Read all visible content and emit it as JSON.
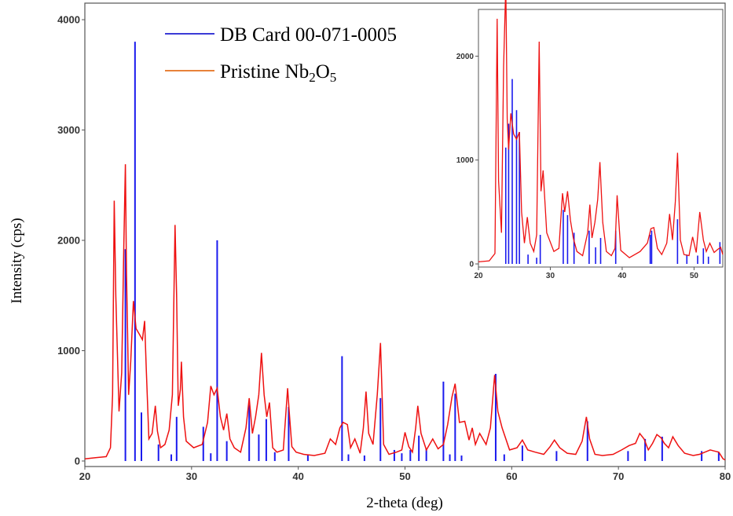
{
  "chart_data": [
    {
      "type": "line",
      "xlabel": "2-theta (deg)",
      "ylabel": "Intensity (cps)",
      "xlim": [
        20,
        80
      ],
      "ylim": [
        -50,
        4150
      ],
      "x_ticks": [
        20,
        30,
        40,
        50,
        60,
        70,
        80
      ],
      "y_ticks": [
        0,
        1000,
        2000,
        3000,
        4000
      ],
      "grid": false,
      "legend_position": "top-center",
      "legend": [
        {
          "name": "DB Card 00-071-0005",
          "color": "#3b3bd6"
        },
        {
          "name_base": "Pristine Nb",
          "sub1": "2",
          "mid": "O",
          "sub2": "5",
          "color": "#e8823a"
        }
      ],
      "series": [
        {
          "name": "DB Card 00-071-0005",
          "style": "sticks",
          "color": "#1a1aee",
          "x": [
            23.8,
            24.7,
            25.3,
            26.9,
            28.1,
            28.6,
            31.1,
            31.8,
            32.4,
            33.3,
            35.4,
            36.3,
            37.0,
            37.8,
            39.1,
            40.9,
            44.1,
            44.7,
            46.2,
            47.7,
            49.0,
            49.7,
            50.5,
            51.3,
            52.0,
            53.6,
            54.2,
            54.7,
            55.3,
            58.5,
            59.3,
            61.0,
            64.2,
            67.1,
            70.9,
            72.5,
            74.1,
            77.8,
            79.4
          ],
          "y": [
            1920,
            3800,
            440,
            150,
            60,
            400,
            310,
            70,
            2000,
            180,
            510,
            240,
            380,
            80,
            490,
            60,
            950,
            60,
            50,
            570,
            100,
            70,
            100,
            230,
            110,
            720,
            60,
            610,
            50,
            790,
            60,
            140,
            90,
            360,
            90,
            200,
            220,
            90,
            80
          ]
        },
        {
          "name": "Pristine Nb2O5",
          "style": "line",
          "color": "#ee1111",
          "x": [
            20,
            21,
            22,
            22.4,
            22.6,
            22.75,
            22.9,
            23.2,
            23.45,
            23.65,
            23.8,
            23.9,
            24.0,
            24.1,
            24.3,
            24.55,
            24.8,
            25.1,
            25.4,
            25.6,
            25.75,
            26.0,
            26.3,
            26.6,
            26.8,
            27.1,
            27.5,
            27.9,
            28.2,
            28.45,
            28.6,
            28.75,
            28.95,
            29.05,
            29.25,
            29.5,
            30.2,
            31.0,
            31.5,
            31.8,
            32.1,
            32.4,
            32.7,
            33.0,
            33.3,
            33.6,
            34.0,
            34.6,
            35.1,
            35.4,
            35.7,
            36.0,
            36.3,
            36.55,
            36.8,
            37.05,
            37.3,
            37.6,
            38.0,
            38.6,
            39.0,
            39.15,
            39.4,
            39.8,
            40.5,
            41.5,
            42.5,
            43.0,
            43.5,
            43.9,
            44.2,
            44.6,
            44.9,
            45.3,
            45.8,
            46.1,
            46.35,
            46.6,
            47.0,
            47.4,
            47.7,
            48.0,
            48.5,
            49.2,
            49.7,
            50.0,
            50.35,
            50.7,
            51.0,
            51.2,
            51.5,
            52.0,
            52.6,
            53.1,
            53.6,
            54.0,
            54.4,
            54.7,
            55.1,
            55.6,
            56.0,
            56.3,
            56.6,
            57.0,
            57.6,
            58.0,
            58.4,
            58.7,
            59.1,
            59.8,
            60.5,
            61.0,
            61.5,
            62.2,
            63.0,
            63.6,
            64.0,
            64.5,
            65.2,
            66.0,
            66.6,
            67.0,
            67.3,
            67.8,
            68.5,
            69.5,
            70.3,
            71.0,
            71.6,
            72.0,
            72.4,
            72.8,
            73.2,
            73.6,
            74.0,
            74.3,
            74.7,
            75.1,
            75.6,
            76.2,
            77.0,
            77.6,
            78.1,
            78.6,
            79.0,
            79.4,
            79.8,
            80.0
          ],
          "y": [
            20,
            30,
            40,
            120,
            600,
            2360,
            1500,
            450,
            800,
            1950,
            2690,
            1700,
            1200,
            600,
            900,
            1450,
            1200,
            1150,
            1100,
            1270,
            850,
            200,
            250,
            500,
            270,
            120,
            150,
            280,
            600,
            2140,
            1500,
            500,
            650,
            900,
            400,
            180,
            120,
            150,
            350,
            680,
            600,
            660,
            400,
            280,
            430,
            200,
            120,
            80,
            300,
            570,
            250,
            400,
            600,
            980,
            600,
            400,
            530,
            120,
            80,
            100,
            660,
            450,
            130,
            80,
            60,
            50,
            70,
            200,
            150,
            300,
            350,
            330,
            120,
            200,
            70,
            300,
            630,
            250,
            150,
            600,
            1070,
            150,
            60,
            80,
            100,
            260,
            130,
            80,
            300,
            500,
            250,
            100,
            200,
            110,
            150,
            330,
            580,
            700,
            350,
            360,
            190,
            300,
            150,
            250,
            150,
            300,
            780,
            450,
            300,
            100,
            120,
            190,
            100,
            80,
            60,
            130,
            190,
            120,
            70,
            60,
            180,
            400,
            200,
            60,
            50,
            60,
            100,
            140,
            160,
            250,
            200,
            100,
            160,
            240,
            210,
            160,
            120,
            220,
            140,
            70,
            50,
            60,
            80,
            100,
            90,
            80,
            20,
            10
          ]
        }
      ]
    },
    {
      "type": "line",
      "role": "inset",
      "xlim": [
        20,
        54
      ],
      "ylim": [
        -30,
        2450
      ],
      "x_ticks": [
        20,
        30,
        40,
        50
      ],
      "y_ticks": [
        0,
        1000,
        2000
      ],
      "series": [
        {
          "name": "DB Card 00-071-0005",
          "style": "sticks",
          "color": "#1a1aee",
          "x": [
            23.8,
            24.2,
            24.7,
            25.3,
            25.7,
            26.9,
            28.1,
            28.6,
            31.8,
            32.4,
            33.3,
            35.4,
            36.3,
            37.0,
            39.1,
            43.9,
            44.1,
            47.7,
            49.0,
            50.5,
            51.3,
            52.0,
            53.6
          ],
          "y": [
            1120,
            1350,
            1780,
            1480,
            1270,
            90,
            60,
            280,
            520,
            470,
            300,
            320,
            160,
            250,
            320,
            280,
            320,
            430,
            90,
            80,
            150,
            70,
            210
          ]
        },
        {
          "name": "Pristine Nb2O5",
          "style": "line",
          "color": "#ee1111",
          "x": [
            20,
            21.5,
            22.3,
            22.6,
            22.8,
            23.2,
            23.5,
            23.8,
            24.0,
            24.2,
            24.5,
            24.9,
            25.3,
            25.7,
            26.0,
            26.4,
            26.8,
            27.2,
            27.7,
            28.1,
            28.45,
            28.7,
            29.0,
            29.5,
            30.5,
            31.2,
            31.7,
            32.0,
            32.4,
            32.8,
            33.2,
            33.7,
            34.5,
            35.2,
            35.5,
            35.8,
            36.2,
            36.6,
            36.9,
            37.3,
            37.8,
            38.5,
            39.0,
            39.3,
            39.8,
            41.0,
            42.5,
            43.5,
            44.0,
            44.4,
            44.9,
            45.5,
            46.2,
            46.6,
            47.0,
            47.4,
            47.7,
            48.1,
            48.6,
            49.3,
            49.8,
            50.3,
            50.8,
            51.3,
            51.7,
            52.2,
            52.8,
            53.3,
            53.7,
            54.0
          ],
          "y": [
            20,
            30,
            100,
            2360,
            800,
            300,
            1900,
            2690,
            1400,
            1100,
            1450,
            1250,
            1200,
            1270,
            500,
            200,
            450,
            200,
            120,
            280,
            2140,
            700,
            900,
            300,
            120,
            150,
            680,
            500,
            700,
            420,
            250,
            120,
            80,
            300,
            570,
            250,
            400,
            620,
            980,
            400,
            120,
            80,
            150,
            660,
            130,
            60,
            120,
            200,
            340,
            350,
            150,
            90,
            200,
            480,
            230,
            600,
            1070,
            230,
            90,
            80,
            260,
            110,
            500,
            230,
            120,
            200,
            110,
            140,
            160,
            90
          ]
        }
      ]
    }
  ]
}
